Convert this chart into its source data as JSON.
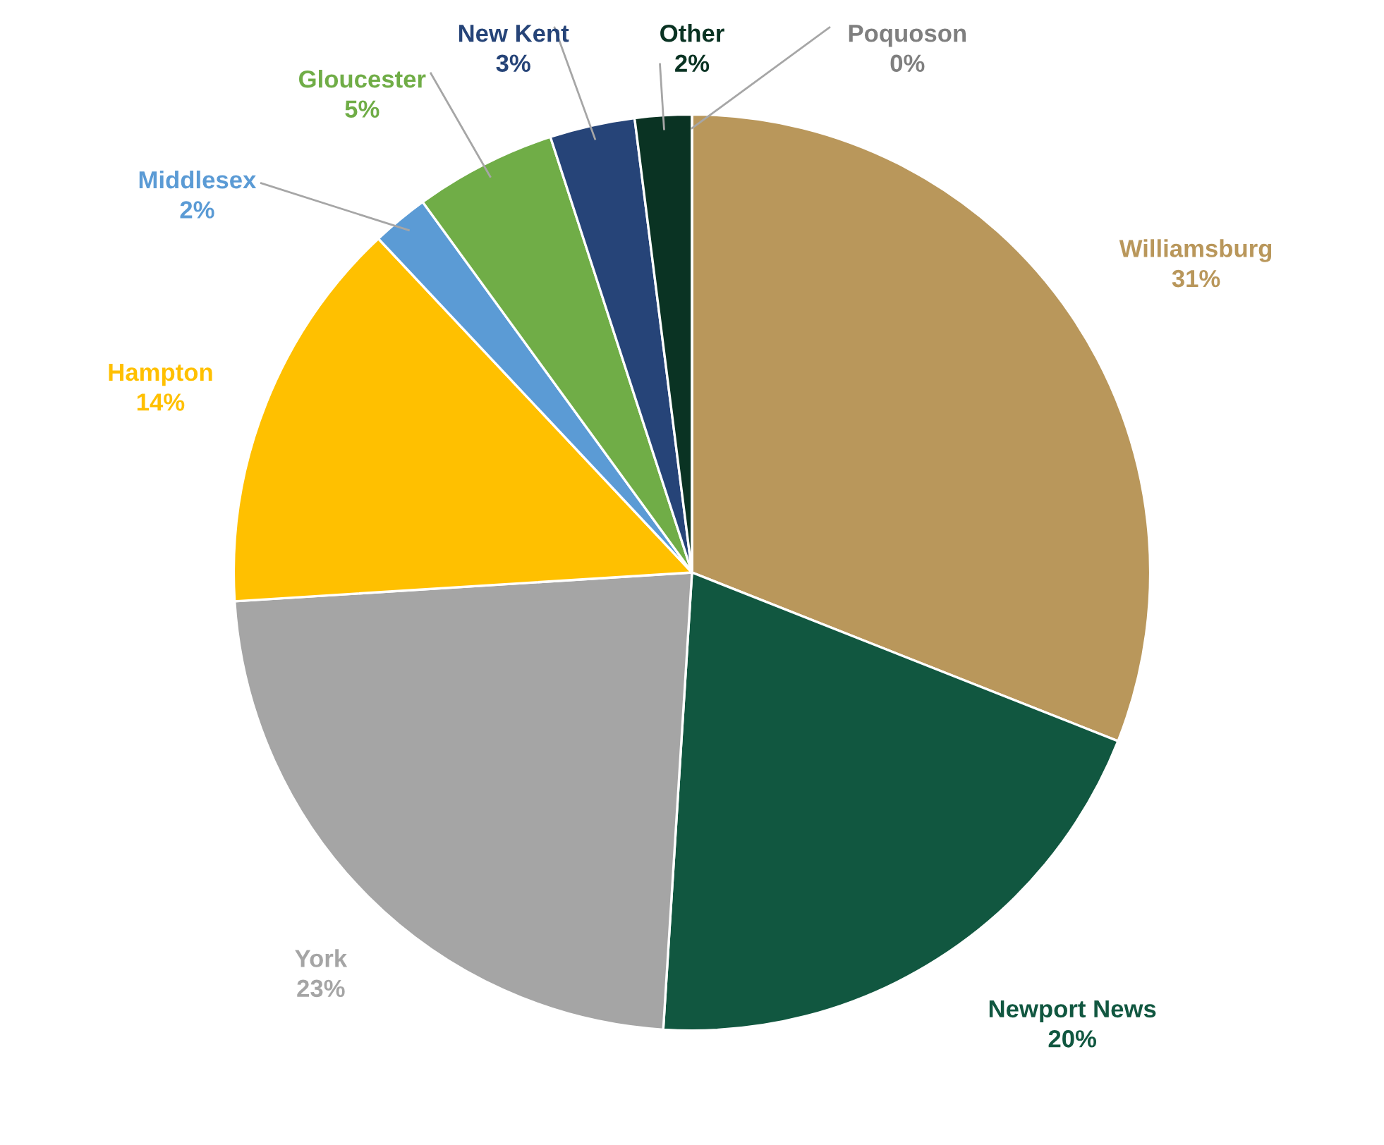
{
  "chart_data": {
    "type": "pie",
    "categories": [
      "Williamsburg",
      "Newport News",
      "York",
      "Hampton",
      "Middlesex",
      "Gloucester",
      "New Kent",
      "Other",
      "Poquoson"
    ],
    "values": [
      31,
      20,
      23,
      14,
      2,
      5,
      3,
      2,
      0
    ],
    "colors": [
      "#b9975b",
      "#115740",
      "#a5a5a5",
      "#ffc000",
      "#5b9bd5",
      "#70ad47",
      "#264478",
      "#0a3323",
      "#7f7f7f"
    ],
    "value_labels": [
      "31%",
      "20%",
      "23%",
      "14%",
      "2%",
      "5%",
      "3%",
      "2%",
      "0%"
    ],
    "legend": false
  }
}
